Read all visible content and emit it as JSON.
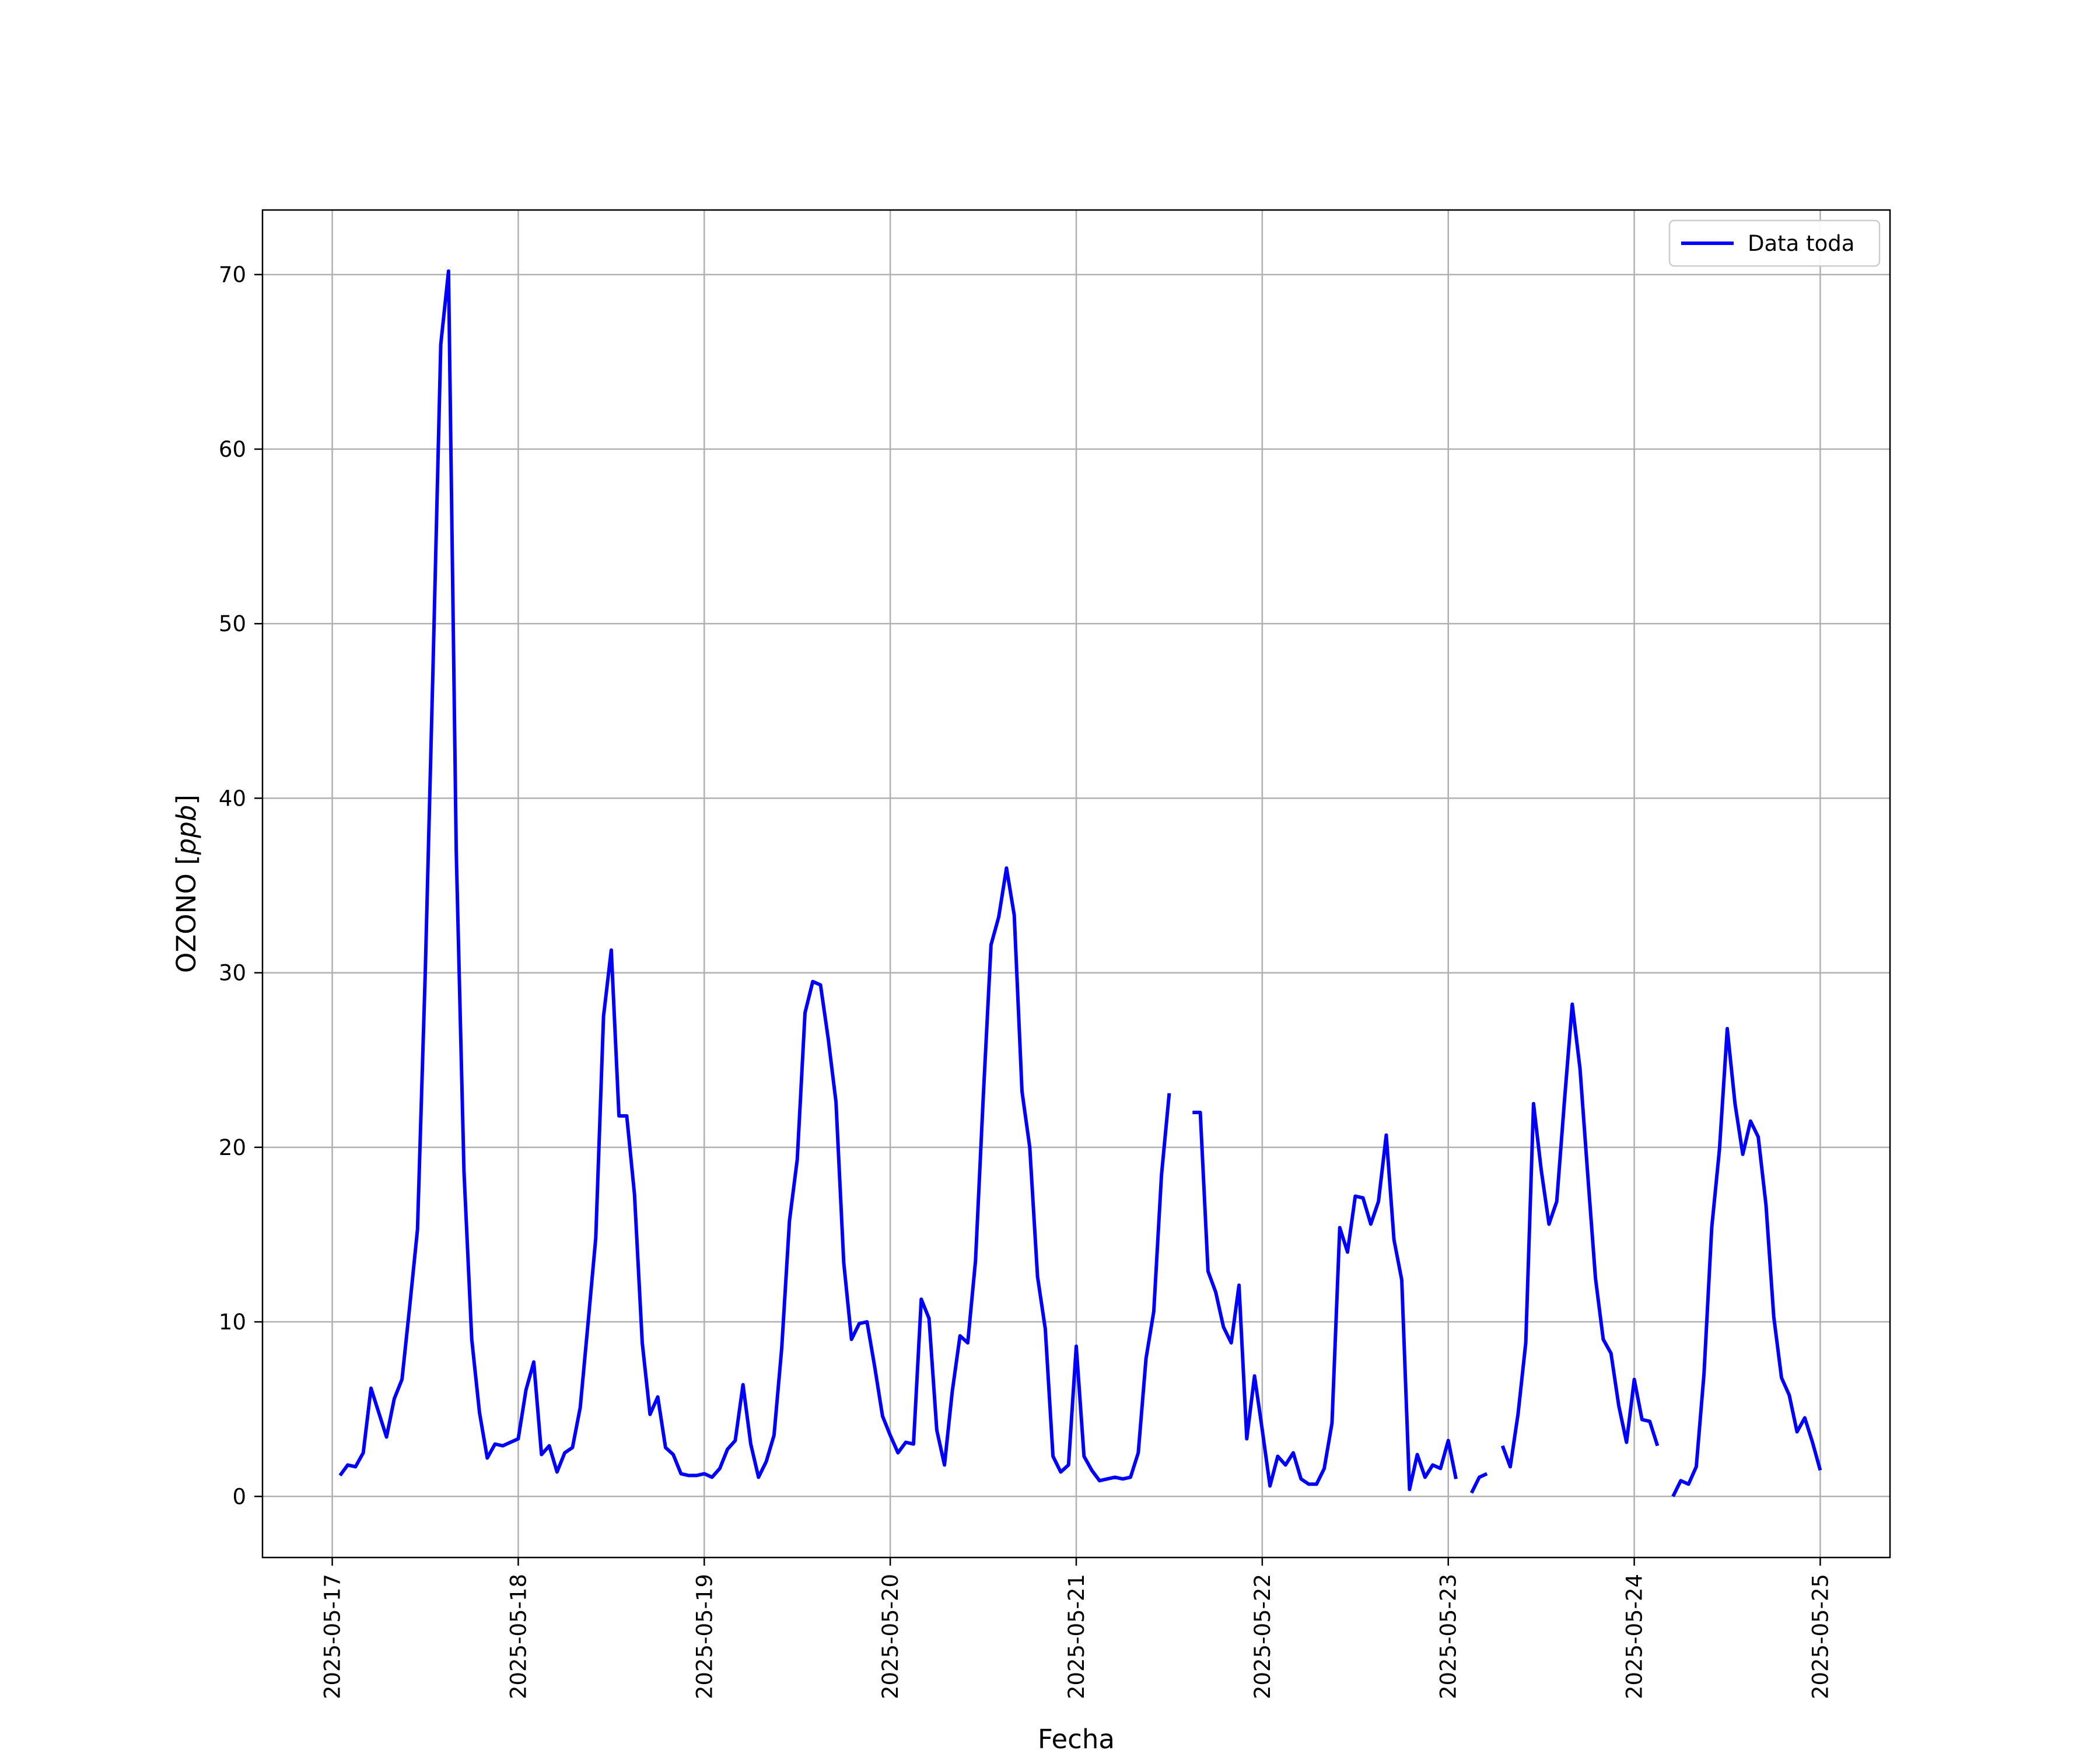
{
  "chart_data": {
    "type": "line",
    "title": "",
    "xlabel": "Fecha",
    "ylabel": "OZONO [ppb]",
    "ylabel_main": "OZONO [",
    "ylabel_unit": "ppb",
    "ylabel_close": "]",
    "xlim": [
      "2025-05-16 15:00",
      "2025-05-25 09:00"
    ],
    "ylim": [
      -3.5,
      73.7
    ],
    "x_ticks": [
      "2025-05-17",
      "2025-05-18",
      "2025-05-19",
      "2025-05-20",
      "2025-05-21",
      "2025-05-22",
      "2025-05-23",
      "2025-05-24",
      "2025-05-25"
    ],
    "y_ticks": [
      0,
      10,
      20,
      30,
      40,
      50,
      60,
      70
    ],
    "grid": true,
    "legend_position": "top-right",
    "colors": {
      "series": "#0000ff",
      "grid": "#b0b0b0",
      "frame": "#000000"
    },
    "series": [
      {
        "name": "Data toda",
        "segments": [
          [
            [
              "2025-05-17 01:00",
              1.2
            ],
            [
              "2025-05-17 02:00",
              1.8
            ],
            [
              "2025-05-17 03:00",
              1.7
            ],
            [
              "2025-05-17 04:00",
              2.5
            ],
            [
              "2025-05-17 05:00",
              6.2
            ],
            [
              "2025-05-17 06:00",
              4.8
            ],
            [
              "2025-05-17 07:00",
              3.4
            ],
            [
              "2025-05-17 08:00",
              5.6
            ],
            [
              "2025-05-17 09:00",
              6.7
            ],
            [
              "2025-05-17 10:00",
              10.9
            ],
            [
              "2025-05-17 11:00",
              15.3
            ],
            [
              "2025-05-17 12:00",
              30.0
            ],
            [
              "2025-05-17 13:00",
              47.5
            ],
            [
              "2025-05-17 14:00",
              66.0
            ],
            [
              "2025-05-17 15:00",
              70.2
            ],
            [
              "2025-05-17 16:00",
              37.0
            ],
            [
              "2025-05-17 17:00",
              18.6
            ],
            [
              "2025-05-17 18:00",
              9.0
            ],
            [
              "2025-05-17 19:00",
              4.8
            ],
            [
              "2025-05-17 20:00",
              2.2
            ],
            [
              "2025-05-17 21:00",
              3.0
            ],
            [
              "2025-05-17 22:00",
              2.9
            ],
            [
              "2025-05-17 23:00",
              3.1
            ],
            [
              "2025-05-18 00:00",
              3.3
            ],
            [
              "2025-05-18 01:00",
              6.1
            ],
            [
              "2025-05-18 02:00",
              7.7
            ],
            [
              "2025-05-18 03:00",
              2.4
            ],
            [
              "2025-05-18 04:00",
              2.9
            ],
            [
              "2025-05-18 05:00",
              1.4
            ],
            [
              "2025-05-18 06:00",
              2.5
            ],
            [
              "2025-05-18 07:00",
              2.8
            ],
            [
              "2025-05-18 08:00",
              5.1
            ],
            [
              "2025-05-18 09:00",
              9.9
            ],
            [
              "2025-05-18 10:00",
              14.8
            ],
            [
              "2025-05-18 11:00",
              27.5
            ],
            [
              "2025-05-18 12:00",
              31.3
            ],
            [
              "2025-05-18 13:00",
              21.8
            ],
            [
              "2025-05-18 14:00",
              21.8
            ],
            [
              "2025-05-18 15:00",
              17.3
            ],
            [
              "2025-05-18 16:00",
              8.8
            ],
            [
              "2025-05-18 17:00",
              4.7
            ],
            [
              "2025-05-18 18:00",
              5.7
            ],
            [
              "2025-05-18 19:00",
              2.8
            ],
            [
              "2025-05-18 20:00",
              2.4
            ],
            [
              "2025-05-18 21:00",
              1.3
            ],
            [
              "2025-05-18 22:00",
              1.2
            ],
            [
              "2025-05-18 23:00",
              1.2
            ],
            [
              "2025-05-19 00:00",
              1.3
            ],
            [
              "2025-05-19 01:00",
              1.1
            ],
            [
              "2025-05-19 02:00",
              1.6
            ],
            [
              "2025-05-19 03:00",
              2.7
            ],
            [
              "2025-05-19 04:00",
              3.2
            ],
            [
              "2025-05-19 05:00",
              6.4
            ],
            [
              "2025-05-19 06:00",
              3.0
            ],
            [
              "2025-05-19 07:00",
              1.1
            ],
            [
              "2025-05-19 08:00",
              2.0
            ],
            [
              "2025-05-19 09:00",
              3.5
            ],
            [
              "2025-05-19 10:00",
              8.5
            ],
            [
              "2025-05-19 11:00",
              15.8
            ],
            [
              "2025-05-19 12:00",
              19.3
            ],
            [
              "2025-05-19 13:00",
              27.7
            ],
            [
              "2025-05-19 14:00",
              29.5
            ],
            [
              "2025-05-19 15:00",
              29.3
            ],
            [
              "2025-05-19 16:00",
              26.2
            ],
            [
              "2025-05-19 17:00",
              22.6
            ],
            [
              "2025-05-19 18:00",
              13.4
            ],
            [
              "2025-05-19 19:00",
              9.0
            ],
            [
              "2025-05-19 20:00",
              9.9
            ],
            [
              "2025-05-19 21:00",
              10.0
            ],
            [
              "2025-05-19 22:00",
              7.4
            ],
            [
              "2025-05-19 23:00",
              4.6
            ],
            [
              "2025-05-20 00:00",
              3.5
            ],
            [
              "2025-05-20 01:00",
              2.5
            ],
            [
              "2025-05-20 02:00",
              3.1
            ],
            [
              "2025-05-20 03:00",
              3.0
            ],
            [
              "2025-05-20 04:00",
              11.3
            ],
            [
              "2025-05-20 05:00",
              10.2
            ],
            [
              "2025-05-20 06:00",
              3.8
            ],
            [
              "2025-05-20 07:00",
              1.8
            ],
            [
              "2025-05-20 08:00",
              6.0
            ],
            [
              "2025-05-20 09:00",
              9.2
            ],
            [
              "2025-05-20 10:00",
              8.8
            ],
            [
              "2025-05-20 11:00",
              13.5
            ],
            [
              "2025-05-20 12:00",
              22.9
            ],
            [
              "2025-05-20 13:00",
              31.6
            ],
            [
              "2025-05-20 14:00",
              33.2
            ],
            [
              "2025-05-20 15:00",
              36.0
            ],
            [
              "2025-05-20 16:00",
              33.3
            ],
            [
              "2025-05-20 17:00",
              23.2
            ],
            [
              "2025-05-20 18:00",
              20.0
            ],
            [
              "2025-05-20 19:00",
              12.6
            ],
            [
              "2025-05-20 20:00",
              9.6
            ],
            [
              "2025-05-20 21:00",
              2.3
            ],
            [
              "2025-05-20 22:00",
              1.4
            ],
            [
              "2025-05-20 23:00",
              1.8
            ],
            [
              "2025-05-21 00:00",
              8.6
            ],
            [
              "2025-05-21 01:00",
              2.3
            ],
            [
              "2025-05-21 02:00",
              1.5
            ],
            [
              "2025-05-21 03:00",
              0.9
            ],
            [
              "2025-05-21 04:00",
              1.0
            ],
            [
              "2025-05-21 05:00",
              1.1
            ],
            [
              "2025-05-21 06:00",
              1.0
            ],
            [
              "2025-05-21 07:00",
              1.1
            ],
            [
              "2025-05-21 08:00",
              2.5
            ],
            [
              "2025-05-21 09:00",
              7.9
            ],
            [
              "2025-05-21 10:00",
              10.6
            ],
            [
              "2025-05-21 11:00",
              18.4
            ],
            [
              "2025-05-21 12:00",
              23.1
            ]
          ],
          [
            [
              "2025-05-21 15:00",
              22.0
            ],
            [
              "2025-05-21 16:00",
              22.0
            ],
            [
              "2025-05-21 17:00",
              12.9
            ],
            [
              "2025-05-21 18:00",
              11.7
            ],
            [
              "2025-05-21 19:00",
              9.7
            ],
            [
              "2025-05-21 20:00",
              8.8
            ],
            [
              "2025-05-21 21:00",
              12.1
            ],
            [
              "2025-05-21 22:00",
              3.3
            ],
            [
              "2025-05-21 23:00",
              6.9
            ],
            [
              "2025-05-22 00:00",
              3.8
            ],
            [
              "2025-05-22 01:00",
              0.6
            ],
            [
              "2025-05-22 02:00",
              2.3
            ],
            [
              "2025-05-22 03:00",
              1.8
            ],
            [
              "2025-05-22 04:00",
              2.5
            ],
            [
              "2025-05-22 05:00",
              1.0
            ],
            [
              "2025-05-22 06:00",
              0.7
            ],
            [
              "2025-05-22 07:00",
              0.7
            ],
            [
              "2025-05-22 08:00",
              1.6
            ],
            [
              "2025-05-22 09:00",
              4.2
            ],
            [
              "2025-05-22 10:00",
              15.4
            ],
            [
              "2025-05-22 11:00",
              14.0
            ],
            [
              "2025-05-22 12:00",
              17.2
            ],
            [
              "2025-05-22 13:00",
              17.1
            ],
            [
              "2025-05-22 14:00",
              15.6
            ],
            [
              "2025-05-22 15:00",
              16.9
            ],
            [
              "2025-05-22 16:00",
              20.7
            ],
            [
              "2025-05-22 17:00",
              14.7
            ],
            [
              "2025-05-22 18:00",
              12.4
            ],
            [
              "2025-05-22 19:00",
              0.4
            ],
            [
              "2025-05-22 20:00",
              2.4
            ],
            [
              "2025-05-22 21:00",
              1.1
            ],
            [
              "2025-05-22 22:00",
              1.8
            ],
            [
              "2025-05-22 23:00",
              1.6
            ],
            [
              "2025-05-23 00:00",
              3.2
            ],
            [
              "2025-05-23 01:00",
              1.0
            ]
          ],
          [
            [
              "2025-05-23 03:00",
              0.2
            ],
            [
              "2025-05-23 04:00",
              1.1
            ],
            [
              "2025-05-23 05:00",
              1.3
            ]
          ],
          [
            [
              "2025-05-23 07:00",
              2.9
            ],
            [
              "2025-05-23 08:00",
              1.7
            ],
            [
              "2025-05-23 09:00",
              4.7
            ],
            [
              "2025-05-23 10:00",
              8.8
            ],
            [
              "2025-05-23 11:00",
              22.5
            ],
            [
              "2025-05-23 12:00",
              18.7
            ],
            [
              "2025-05-23 13:00",
              15.6
            ],
            [
              "2025-05-23 14:00",
              16.9
            ],
            [
              "2025-05-23 15:00",
              22.7
            ],
            [
              "2025-05-23 16:00",
              28.2
            ],
            [
              "2025-05-23 17:00",
              24.5
            ],
            [
              "2025-05-23 18:00",
              18.4
            ],
            [
              "2025-05-23 19:00",
              12.5
            ],
            [
              "2025-05-23 20:00",
              9.0
            ],
            [
              "2025-05-23 21:00",
              8.2
            ],
            [
              "2025-05-23 22:00",
              5.2
            ],
            [
              "2025-05-23 23:00",
              3.1
            ],
            [
              "2025-05-24 00:00",
              6.7
            ],
            [
              "2025-05-24 01:00",
              4.4
            ],
            [
              "2025-05-24 02:00",
              4.3
            ],
            [
              "2025-05-24 03:00",
              2.9
            ]
          ],
          [
            [
              "2025-05-24 05:00",
              0.0
            ],
            [
              "2025-05-24 06:00",
              0.9
            ],
            [
              "2025-05-24 07:00",
              0.7
            ],
            [
              "2025-05-24 08:00",
              1.7
            ],
            [
              "2025-05-24 09:00",
              7.0
            ],
            [
              "2025-05-24 10:00",
              15.4
            ],
            [
              "2025-05-24 11:00",
              19.9
            ],
            [
              "2025-05-24 12:00",
              26.8
            ],
            [
              "2025-05-24 13:00",
              22.5
            ],
            [
              "2025-05-24 14:00",
              19.6
            ],
            [
              "2025-05-24 15:00",
              21.5
            ],
            [
              "2025-05-24 16:00",
              20.6
            ],
            [
              "2025-05-24 17:00",
              16.7
            ],
            [
              "2025-05-24 18:00",
              10.3
            ],
            [
              "2025-05-24 19:00",
              6.8
            ],
            [
              "2025-05-24 20:00",
              5.8
            ],
            [
              "2025-05-24 21:00",
              3.7
            ],
            [
              "2025-05-24 22:00",
              4.5
            ],
            [
              "2025-05-24 23:00",
              3.1
            ],
            [
              "2025-05-25 00:00",
              1.5
            ]
          ]
        ]
      }
    ]
  }
}
